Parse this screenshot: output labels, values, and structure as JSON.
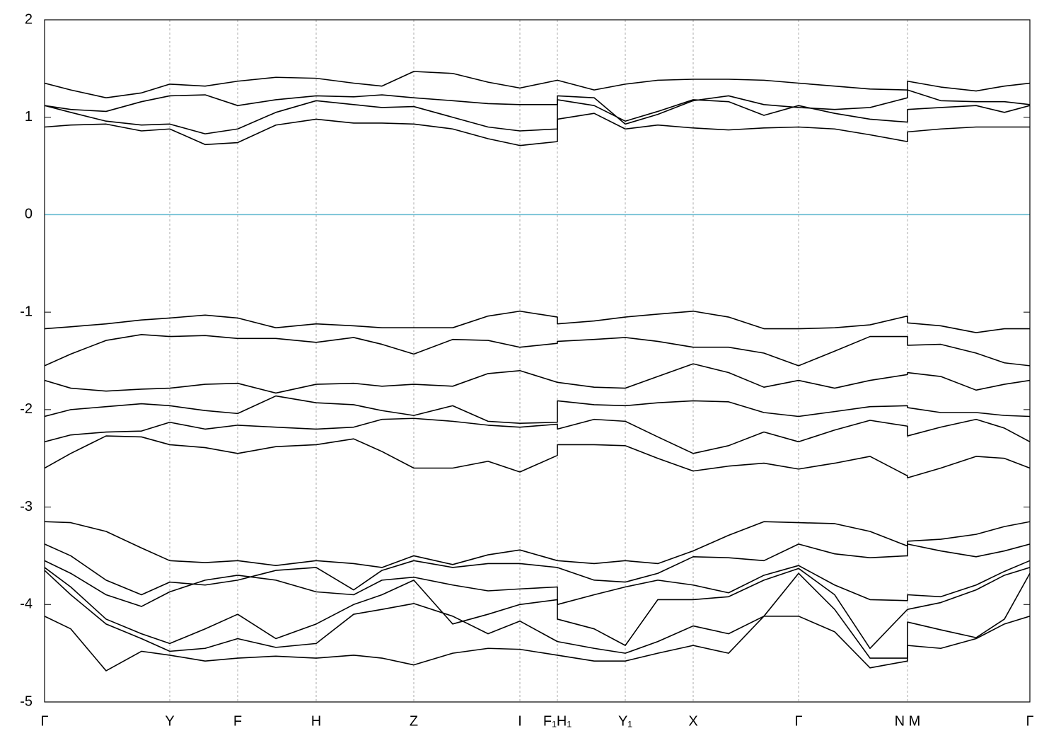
{
  "chart_data": {
    "type": "line",
    "x": [
      0,
      0.37,
      0.87,
      1.37,
      1.77,
      2.27,
      2.73,
      3.27,
      3.84,
      4.37,
      4.77,
      5.22,
      5.77,
      6.27,
      6.72,
      7.25,
      7.25,
      7.77,
      8.21,
      8.67,
      9.17,
      9.67,
      10.17,
      10.66,
      11.17,
      11.67,
      12.2,
      12.2,
      12.67,
      13.17,
      13.57,
      13.93
    ],
    "xlim": [
      0,
      13.93
    ],
    "xticks": [
      {
        "value": 0,
        "label": "Γ"
      },
      {
        "value": 1.77,
        "label": "Y"
      },
      {
        "value": 2.73,
        "label": "F"
      },
      {
        "value": 3.84,
        "label": "H"
      },
      {
        "value": 5.22,
        "label": "Z"
      },
      {
        "value": 6.72,
        "label": "I"
      },
      {
        "value": 7.25,
        "label": "F₁H₁"
      },
      {
        "value": 8.21,
        "label": "Y₁"
      },
      {
        "value": 9.17,
        "label": "X"
      },
      {
        "value": 10.66,
        "label": "Γ"
      },
      {
        "value": 12.2,
        "label": "N M"
      },
      {
        "value": 13.93,
        "label": "Γ"
      }
    ],
    "ylim": [
      -5,
      2
    ],
    "yticks": [
      2,
      1,
      0,
      -1,
      -2,
      -3,
      -4,
      -5
    ],
    "xgrid": true,
    "zero_line_color": "#5fb8cf",
    "series": [
      {
        "color": "#000000",
        "values": [
          1.35,
          1.28,
          1.2,
          1.25,
          1.34,
          1.32,
          1.37,
          1.41,
          1.4,
          1.35,
          1.32,
          1.47,
          1.45,
          1.36,
          1.3,
          1.38,
          1.38,
          1.28,
          1.34,
          1.38,
          1.39,
          1.39,
          1.38,
          1.35,
          1.32,
          1.29,
          1.28,
          1.37,
          1.31,
          1.27,
          1.32,
          1.35
        ]
      },
      {
        "color": "#000000",
        "values": [
          1.12,
          1.08,
          1.06,
          1.16,
          1.22,
          1.23,
          1.12,
          1.18,
          1.22,
          1.21,
          1.23,
          1.2,
          1.17,
          1.14,
          1.13,
          1.13,
          1.22,
          1.2,
          0.93,
          1.03,
          1.17,
          1.22,
          1.13,
          1.1,
          1.08,
          1.1,
          1.2,
          1.28,
          1.17,
          1.16,
          1.16,
          1.13
        ]
      },
      {
        "color": "#000000",
        "values": [
          1.12,
          1.05,
          0.96,
          0.92,
          0.93,
          0.83,
          0.88,
          1.05,
          1.17,
          1.13,
          1.1,
          1.11,
          1.0,
          0.9,
          0.86,
          0.88,
          1.18,
          1.12,
          0.96,
          1.06,
          1.18,
          1.16,
          1.02,
          1.12,
          1.04,
          0.98,
          0.95,
          1.08,
          1.1,
          1.12,
          1.05,
          1.12
        ]
      },
      {
        "color": "#000000",
        "values": [
          0.9,
          0.92,
          0.93,
          0.86,
          0.88,
          0.72,
          0.74,
          0.92,
          0.98,
          0.94,
          0.94,
          0.93,
          0.88,
          0.78,
          0.71,
          0.75,
          0.98,
          1.04,
          0.88,
          0.92,
          0.89,
          0.87,
          0.89,
          0.9,
          0.88,
          0.82,
          0.75,
          0.85,
          0.88,
          0.9,
          0.9,
          0.9
        ]
      },
      {
        "color": "#000000",
        "values": [
          -1.17,
          -1.15,
          -1.12,
          -1.08,
          -1.06,
          -1.03,
          -1.06,
          -1.16,
          -1.12,
          -1.14,
          -1.16,
          -1.16,
          -1.16,
          -1.04,
          -0.99,
          -1.05,
          -1.12,
          -1.09,
          -1.05,
          -1.02,
          -0.99,
          -1.05,
          -1.17,
          -1.17,
          -1.16,
          -1.13,
          -1.04,
          -1.11,
          -1.14,
          -1.21,
          -1.17,
          -1.17
        ]
      },
      {
        "color": "#000000",
        "values": [
          -1.55,
          -1.43,
          -1.29,
          -1.23,
          -1.25,
          -1.24,
          -1.27,
          -1.27,
          -1.31,
          -1.26,
          -1.33,
          -1.43,
          -1.28,
          -1.29,
          -1.36,
          -1.32,
          -1.3,
          -1.28,
          -1.26,
          -1.3,
          -1.36,
          -1.36,
          -1.42,
          -1.55,
          -1.4,
          -1.25,
          -1.25,
          -1.34,
          -1.33,
          -1.42,
          -1.52,
          -1.55
        ]
      },
      {
        "color": "#000000",
        "values": [
          -1.7,
          -1.78,
          -1.81,
          -1.79,
          -1.78,
          -1.74,
          -1.73,
          -1.83,
          -1.74,
          -1.73,
          -1.76,
          -1.74,
          -1.76,
          -1.63,
          -1.6,
          -1.72,
          -1.72,
          -1.77,
          -1.78,
          -1.66,
          -1.53,
          -1.62,
          -1.77,
          -1.7,
          -1.78,
          -1.7,
          -1.64,
          -1.62,
          -1.66,
          -1.8,
          -1.74,
          -1.7
        ]
      },
      {
        "color": "#000000",
        "values": [
          -2.07,
          -2.0,
          -1.97,
          -1.94,
          -1.96,
          -2.01,
          -2.04,
          -1.86,
          -1.93,
          -1.95,
          -2.01,
          -2.06,
          -1.96,
          -2.12,
          -2.14,
          -2.13,
          -1.91,
          -1.95,
          -1.96,
          -1.93,
          -1.91,
          -1.92,
          -2.03,
          -2.07,
          -2.02,
          -1.97,
          -1.96,
          -1.98,
          -2.03,
          -2.03,
          -2.06,
          -2.07
        ]
      },
      {
        "color": "#000000",
        "values": [
          -2.33,
          -2.26,
          -2.23,
          -2.22,
          -2.13,
          -2.2,
          -2.16,
          -2.18,
          -2.2,
          -2.18,
          -2.1,
          -2.09,
          -2.12,
          -2.16,
          -2.18,
          -2.15,
          -2.2,
          -2.1,
          -2.12,
          -2.28,
          -2.45,
          -2.37,
          -2.23,
          -2.33,
          -2.21,
          -2.11,
          -2.17,
          -2.27,
          -2.18,
          -2.1,
          -2.19,
          -2.33
        ]
      },
      {
        "color": "#000000",
        "values": [
          -2.6,
          -2.45,
          -2.27,
          -2.28,
          -2.36,
          -2.39,
          -2.45,
          -2.38,
          -2.36,
          -2.3,
          -2.43,
          -2.6,
          -2.6,
          -2.53,
          -2.64,
          -2.47,
          -2.36,
          -2.36,
          -2.37,
          -2.5,
          -2.63,
          -2.58,
          -2.55,
          -2.61,
          -2.55,
          -2.48,
          -2.68,
          -2.7,
          -2.6,
          -2.48,
          -2.5,
          -2.6
        ]
      },
      {
        "color": "#000000",
        "values": [
          -3.15,
          -3.16,
          -3.25,
          -3.42,
          -3.55,
          -3.57,
          -3.55,
          -3.6,
          -3.55,
          -3.58,
          -3.62,
          -3.5,
          -3.59,
          -3.49,
          -3.44,
          -3.55,
          -3.55,
          -3.58,
          -3.55,
          -3.58,
          -3.45,
          -3.29,
          -3.15,
          -3.16,
          -3.17,
          -3.25,
          -3.4,
          -3.35,
          -3.33,
          -3.28,
          -3.2,
          -3.15
        ]
      },
      {
        "color": "#000000",
        "values": [
          -3.38,
          -3.5,
          -3.75,
          -3.9,
          -3.77,
          -3.8,
          -3.75,
          -3.65,
          -3.62,
          -3.85,
          -3.65,
          -3.55,
          -3.62,
          -3.58,
          -3.58,
          -3.62,
          -3.62,
          -3.75,
          -3.77,
          -3.68,
          -3.51,
          -3.52,
          -3.55,
          -3.38,
          -3.48,
          -3.52,
          -3.5,
          -3.38,
          -3.45,
          -3.51,
          -3.45,
          -3.38
        ]
      },
      {
        "color": "#000000",
        "values": [
          -3.55,
          -3.68,
          -3.9,
          -4.02,
          -3.87,
          -3.75,
          -3.7,
          -3.75,
          -3.87,
          -3.9,
          -3.75,
          -3.72,
          -3.8,
          -3.86,
          -3.84,
          -3.82,
          -4.0,
          -3.9,
          -3.82,
          -3.75,
          -3.8,
          -3.88,
          -3.7,
          -3.6,
          -3.8,
          -3.95,
          -3.96,
          -3.9,
          -3.92,
          -3.8,
          -3.66,
          -3.55
        ]
      },
      {
        "color": "#000000",
        "values": [
          -3.62,
          -3.82,
          -4.15,
          -4.3,
          -4.4,
          -4.25,
          -4.1,
          -4.35,
          -4.2,
          -4.0,
          -3.9,
          -3.75,
          -4.2,
          -4.1,
          -4.0,
          -3.95,
          -4.15,
          -4.25,
          -4.42,
          -3.95,
          -3.95,
          -3.92,
          -3.75,
          -3.63,
          -3.9,
          -4.45,
          -4.05,
          -4.05,
          -3.98,
          -3.85,
          -3.7,
          -3.62
        ]
      },
      {
        "color": "#000000",
        "values": [
          -3.65,
          -3.9,
          -4.2,
          -4.35,
          -4.48,
          -4.45,
          -4.35,
          -4.44,
          -4.4,
          -4.1,
          -4.05,
          -3.99,
          -4.12,
          -4.3,
          -4.17,
          -4.38,
          -4.38,
          -4.45,
          -4.5,
          -4.38,
          -4.22,
          -4.3,
          -4.12,
          -3.68,
          -4.05,
          -4.55,
          -4.55,
          -4.18,
          -4.26,
          -4.34,
          -4.15,
          -3.68
        ]
      },
      {
        "color": "#000000",
        "values": [
          -4.12,
          -4.25,
          -4.68,
          -4.48,
          -4.52,
          -4.58,
          -4.55,
          -4.53,
          -4.55,
          -4.52,
          -4.55,
          -4.62,
          -4.5,
          -4.45,
          -4.46,
          -4.52,
          -4.52,
          -4.58,
          -4.58,
          -4.5,
          -4.42,
          -4.5,
          -4.12,
          -4.12,
          -4.28,
          -4.65,
          -4.58,
          -4.42,
          -4.45,
          -4.35,
          -4.2,
          -4.12
        ]
      }
    ]
  }
}
